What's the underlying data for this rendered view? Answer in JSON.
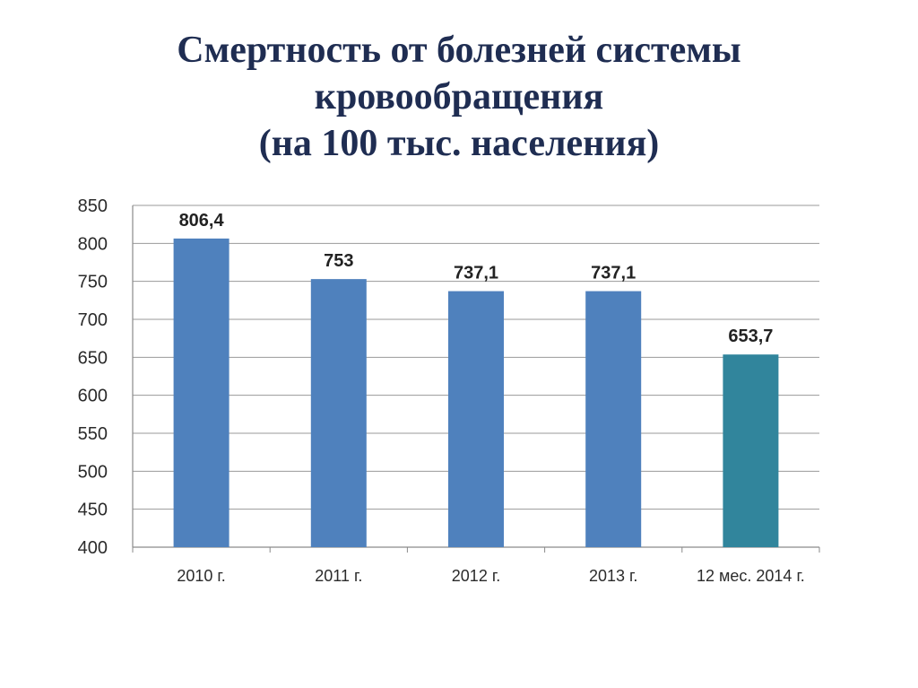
{
  "slide": {
    "title_lines": [
      "Смертность от болезней системы",
      "кровообращения",
      "(на 100 тыс. населения)"
    ]
  },
  "colors": {
    "bar_default": "#4f81bd",
    "bar_highlight": "#31859c",
    "title": "#1f2d52",
    "grid": "#9a9a9a"
  },
  "chart_data": {
    "type": "bar",
    "categories": [
      "2010 г.",
      "2011 г.",
      "2012 г.",
      "2013 г.",
      "12 мес. 2014 г."
    ],
    "values": [
      806.4,
      753,
      737.1,
      737.1,
      653.7
    ],
    "value_labels": [
      "806,4",
      "753",
      "737,1",
      "737,1",
      "653,7"
    ],
    "bar_colors": [
      "#4f81bd",
      "#4f81bd",
      "#4f81bd",
      "#4f81bd",
      "#31859c"
    ],
    "title": "Смертность от болезней системы кровообращения (на 100 тыс. населения)",
    "xlabel": "",
    "ylabel": "",
    "ylim": [
      400,
      850
    ],
    "yticks": [
      400,
      450,
      500,
      550,
      600,
      650,
      700,
      750,
      800,
      850
    ],
    "grid": true,
    "legend": "none"
  }
}
